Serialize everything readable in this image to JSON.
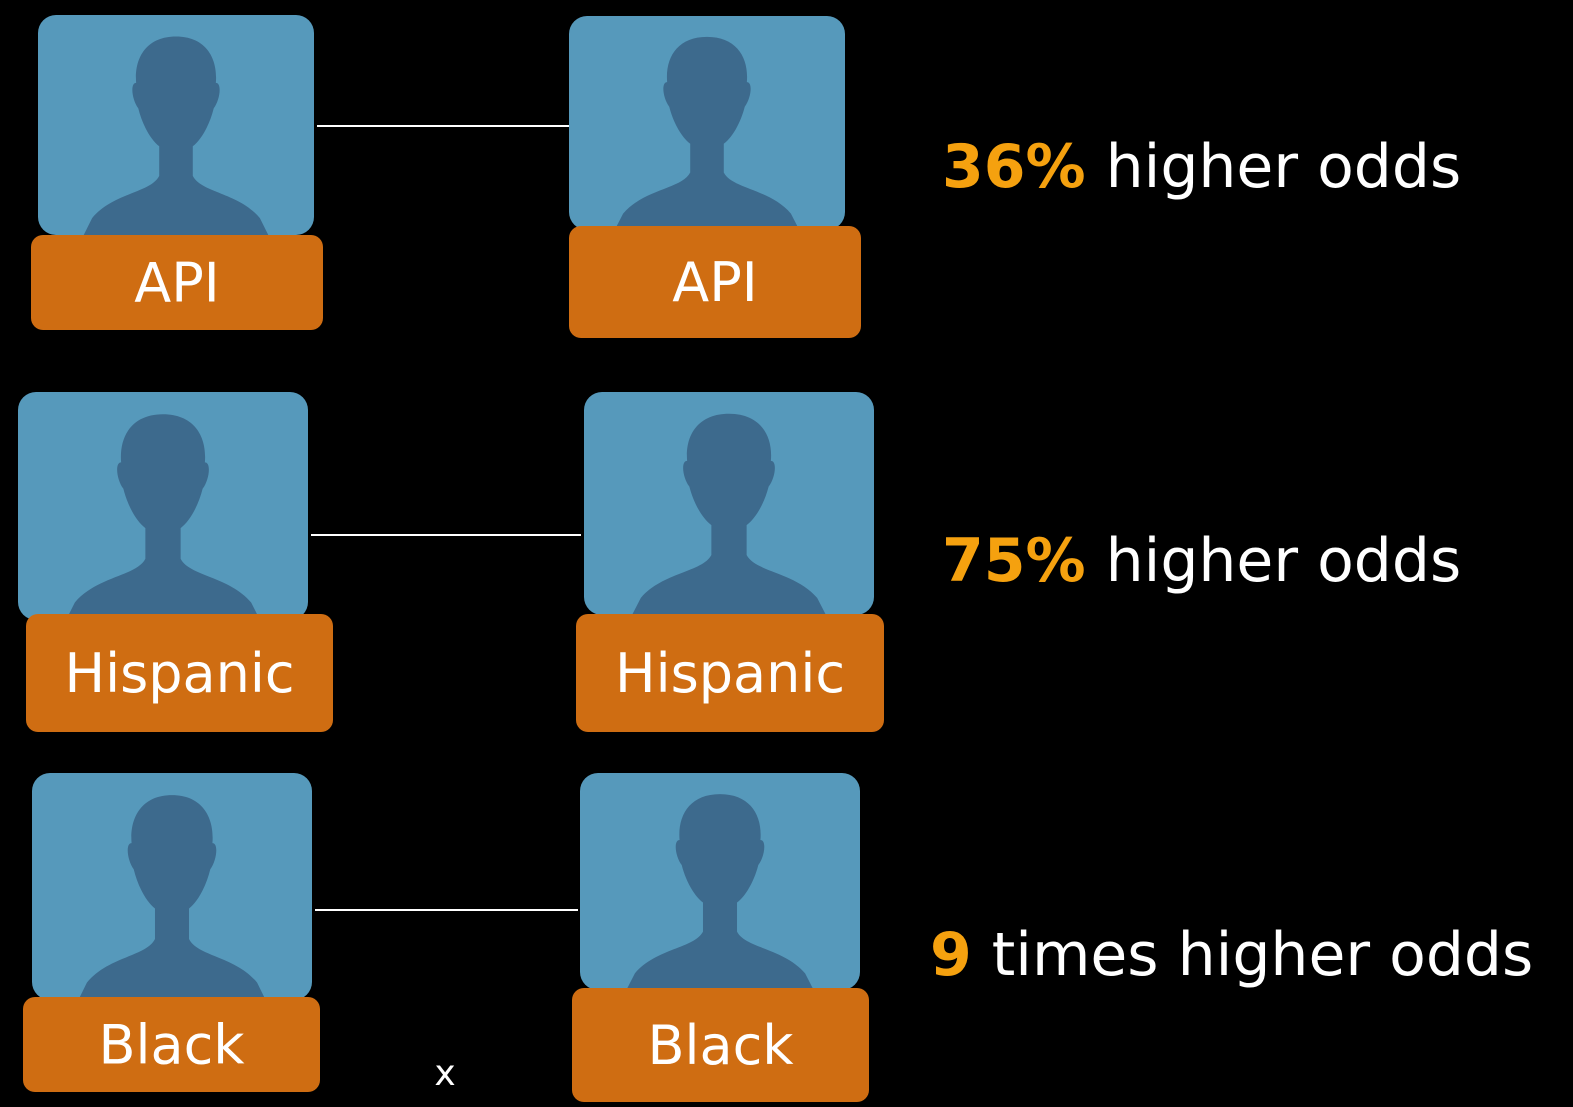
{
  "rows": [
    {
      "left": "API",
      "right": "API",
      "highlight": "36%",
      "text": "higher odds"
    },
    {
      "left": "Hispanic",
      "right": "Hispanic",
      "highlight": "75%",
      "text": "higher odds"
    },
    {
      "left": "Black",
      "right": "Black",
      "highlight": "9",
      "text": "times higher odds"
    }
  ],
  "mark": "x"
}
